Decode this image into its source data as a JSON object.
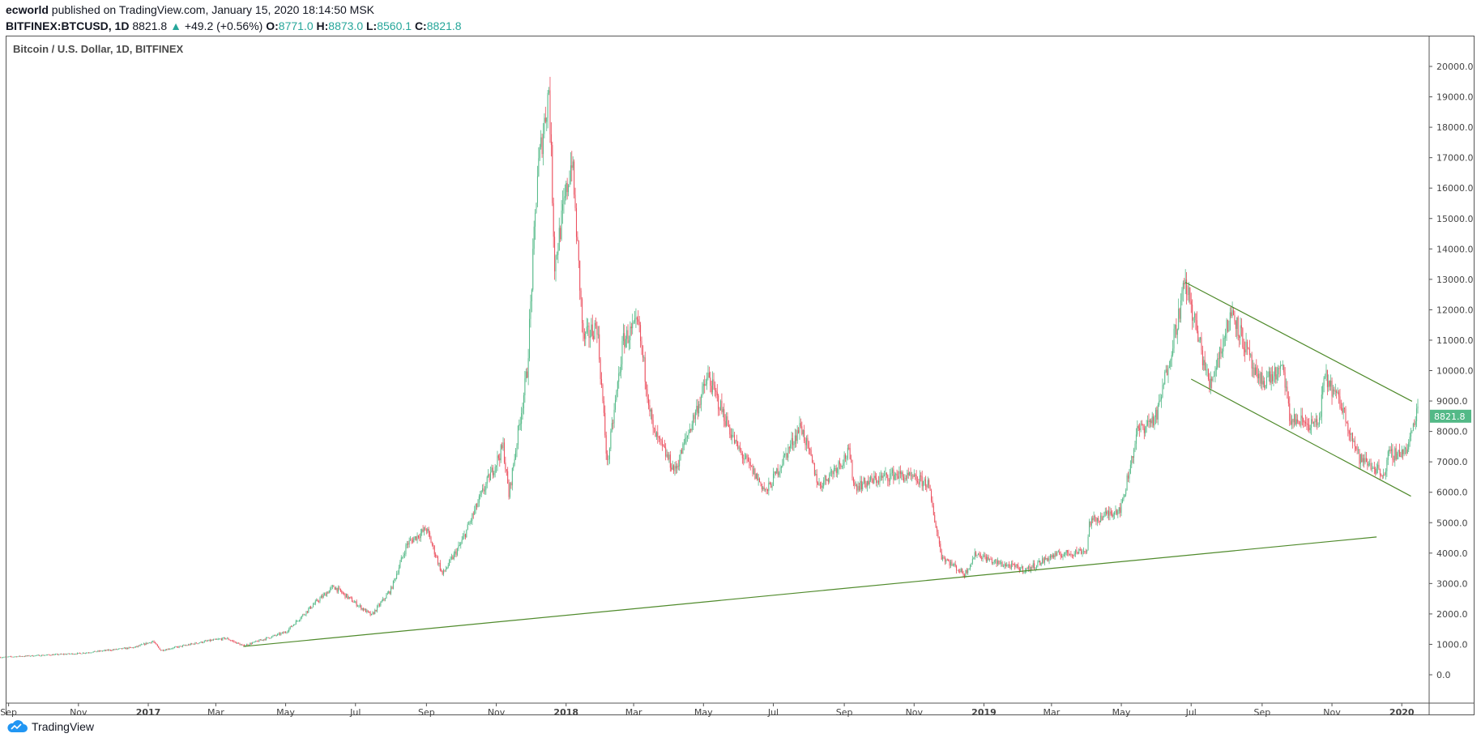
{
  "header": {
    "author": "ecworld",
    "published": "published on TradingView.com, January 15, 2020 18:14:50 MSK",
    "symbol": "BITFINEX:BTCUSD, 1D",
    "last": "8821.8",
    "change": "+49.2 (+0.56%)",
    "o_label": "O:",
    "o": "8771.0",
    "h_label": "H:",
    "h": "8873.0",
    "l_label": "L:",
    "l": "8560.1",
    "c_label": "C:",
    "c": "8821.8"
  },
  "logo": "TradingView",
  "colors": {
    "up": "#53b987",
    "down": "#eb4d5c",
    "trendline": "#4f8a2b",
    "label_bg": "#53b987"
  },
  "chart_data": {
    "type": "candlestick",
    "title": "Bitcoin / U.S. Dollar, 1D, BITFINEX",
    "ylim": [
      0,
      20000
    ],
    "y_ticks": [
      "20000.0",
      "19000.0",
      "18000.0",
      "17000.0",
      "16000.0",
      "15000.0",
      "14000.0",
      "13000.0",
      "12000.0",
      "11000.0",
      "10000.0",
      "9000.0",
      "8000.0",
      "7000.0",
      "6000.0",
      "5000.0",
      "4000.0",
      "3000.0",
      "2000.0",
      "1000.0",
      "0.0"
    ],
    "x_ticks": [
      {
        "label": "Sep",
        "date": "2016-09-01",
        "bold": false
      },
      {
        "label": "Nov",
        "date": "2016-11-01",
        "bold": false
      },
      {
        "label": "2017",
        "date": "2017-01-01",
        "bold": true
      },
      {
        "label": "Mar",
        "date": "2017-03-01",
        "bold": false
      },
      {
        "label": "May",
        "date": "2017-05-01",
        "bold": false
      },
      {
        "label": "Jul",
        "date": "2017-07-01",
        "bold": false
      },
      {
        "label": "Sep",
        "date": "2017-09-01",
        "bold": false
      },
      {
        "label": "Nov",
        "date": "2017-11-01",
        "bold": false
      },
      {
        "label": "2018",
        "date": "2018-01-01",
        "bold": true
      },
      {
        "label": "Mar",
        "date": "2018-03-01",
        "bold": false
      },
      {
        "label": "May",
        "date": "2018-05-01",
        "bold": false
      },
      {
        "label": "Jul",
        "date": "2018-07-01",
        "bold": false
      },
      {
        "label": "Sep",
        "date": "2018-09-01",
        "bold": false
      },
      {
        "label": "Nov",
        "date": "2018-11-01",
        "bold": false
      },
      {
        "label": "2019",
        "date": "2019-01-01",
        "bold": true
      },
      {
        "label": "Mar",
        "date": "2019-03-01",
        "bold": false
      },
      {
        "label": "May",
        "date": "2019-05-01",
        "bold": false
      },
      {
        "label": "Jul",
        "date": "2019-07-01",
        "bold": false
      },
      {
        "label": "Sep",
        "date": "2019-09-01",
        "bold": false
      },
      {
        "label": "Nov",
        "date": "2019-11-01",
        "bold": false
      },
      {
        "label": "2020",
        "date": "2020-01-01",
        "bold": true
      }
    ],
    "close_keypoints": [
      [
        "2016-08-25",
        575
      ],
      [
        "2016-11-01",
        700
      ],
      [
        "2016-12-20",
        900
      ],
      [
        "2017-01-05",
        1100
      ],
      [
        "2017-01-12",
        800
      ],
      [
        "2017-02-20",
        1100
      ],
      [
        "2017-03-10",
        1200
      ],
      [
        "2017-03-25",
        950
      ],
      [
        "2017-05-01",
        1400
      ],
      [
        "2017-05-25",
        2300
      ],
      [
        "2017-06-12",
        2900
      ],
      [
        "2017-07-15",
        1950
      ],
      [
        "2017-08-01",
        2800
      ],
      [
        "2017-08-15",
        4300
      ],
      [
        "2017-09-01",
        4800
      ],
      [
        "2017-09-15",
        3300
      ],
      [
        "2017-10-01",
        4300
      ],
      [
        "2017-10-20",
        6000
      ],
      [
        "2017-11-07",
        7500
      ],
      [
        "2017-11-12",
        5900
      ],
      [
        "2017-11-28",
        10000
      ],
      [
        "2017-12-07",
        16500
      ],
      [
        "2017-12-17",
        19300
      ],
      [
        "2017-12-22",
        13500
      ],
      [
        "2018-01-06",
        17000
      ],
      [
        "2018-01-16",
        11000
      ],
      [
        "2018-01-28",
        11500
      ],
      [
        "2018-02-06",
        6900
      ],
      [
        "2018-02-20",
        11000
      ],
      [
        "2018-03-05",
        11500
      ],
      [
        "2018-03-18",
        8000
      ],
      [
        "2018-04-06",
        6700
      ],
      [
        "2018-05-05",
        9800
      ],
      [
        "2018-05-30",
        7500
      ],
      [
        "2018-06-25",
        6000
      ],
      [
        "2018-07-25",
        8200
      ],
      [
        "2018-08-10",
        6200
      ],
      [
        "2018-09-05",
        7300
      ],
      [
        "2018-09-10",
        6200
      ],
      [
        "2018-10-15",
        6600
      ],
      [
        "2018-11-13",
        6300
      ],
      [
        "2018-11-25",
        3900
      ],
      [
        "2018-12-15",
        3300
      ],
      [
        "2018-12-25",
        4000
      ],
      [
        "2019-01-10",
        3700
      ],
      [
        "2019-02-07",
        3450
      ],
      [
        "2019-03-01",
        3900
      ],
      [
        "2019-04-01",
        4100
      ],
      [
        "2019-04-03",
        5000
      ],
      [
        "2019-05-01",
        5500
      ],
      [
        "2019-05-15",
        8000
      ],
      [
        "2019-06-01",
        8500
      ],
      [
        "2019-06-26",
        12900
      ],
      [
        "2019-07-17",
        9500
      ],
      [
        "2019-08-06",
        12000
      ],
      [
        "2019-08-28",
        9600
      ],
      [
        "2019-09-20",
        10000
      ],
      [
        "2019-09-25",
        8400
      ],
      [
        "2019-10-20",
        8200
      ],
      [
        "2019-10-26",
        9800
      ],
      [
        "2019-11-10",
        8800
      ],
      [
        "2019-11-25",
        7100
      ],
      [
        "2019-12-18",
        6600
      ],
      [
        "2019-12-20",
        7200
      ],
      [
        "2020-01-06",
        7400
      ],
      [
        "2020-01-15",
        8821.8
      ]
    ],
    "trendlines": [
      {
        "name": "support",
        "from": [
          "2017-03-25",
          930
        ],
        "to": [
          "2019-12-10",
          4530
        ]
      },
      {
        "name": "channel-upper",
        "from": [
          "2019-06-26",
          12900
        ],
        "to": [
          "2020-01-10",
          8990
        ]
      },
      {
        "name": "channel-lower",
        "from": [
          "2019-07-01",
          9720
        ],
        "to": [
          "2020-01-09",
          5870
        ]
      }
    ],
    "last_price_label": "8821.8"
  }
}
